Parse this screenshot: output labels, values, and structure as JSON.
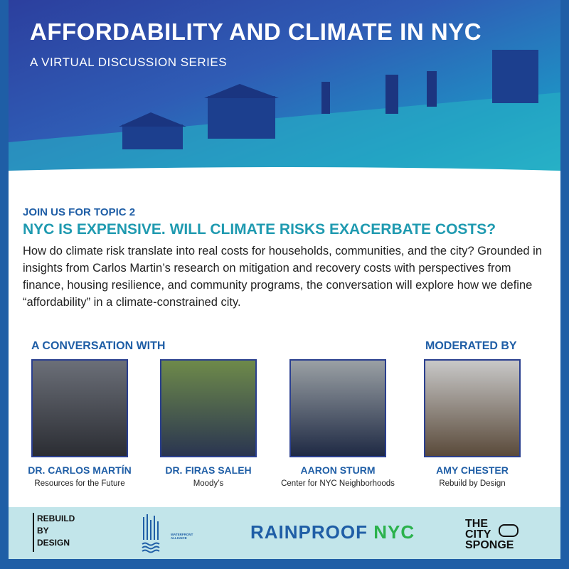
{
  "header": {
    "title": "AFFORDABILITY AND CLIMATE IN NYC",
    "subtitle": "A VIRTUAL DISCUSSION SERIES"
  },
  "topic": {
    "kicker": "JOIN US FOR TOPIC 2",
    "headline": "NYC IS EXPENSIVE. WILL CLIMATE RISKS EXACERBATE COSTS?",
    "description": "How do climate risk translate into real costs for households, communities, and the city? Grounded in insights from Carlos Martin’s research on mitigation and recovery costs with perspectives from finance, housing resilience, and community programs, the conversation will explore how we define “affordability” in a climate-constrained city."
  },
  "sections": {
    "conversation": "A CONVERSATION WITH",
    "moderated": "MODERATED BY"
  },
  "speakers": [
    {
      "name": "DR. CARLOS MARTÍN",
      "org": "Resources for the Future"
    },
    {
      "name": "DR. FIRAS SALEH",
      "org": "Moody’s"
    },
    {
      "name": "AARON STURM",
      "org": "Center for NYC Neighborhoods"
    },
    {
      "name": "AMY CHESTER",
      "org": "Rebuild by Design"
    }
  ],
  "sponsors": {
    "rbd": [
      "REBUILD",
      "BY",
      "DESIGN"
    ],
    "wfa": "WATERFRONT ALLIANCE",
    "rainproof_a": "RAINPROOF",
    "rainproof_b": "NYC",
    "sponge": [
      "THE",
      "CITY",
      "SPONGE"
    ]
  },
  "colors": {
    "border": "#1f5ea6",
    "accent": "#1f9ab0",
    "footer": "#c2e5ea"
  }
}
